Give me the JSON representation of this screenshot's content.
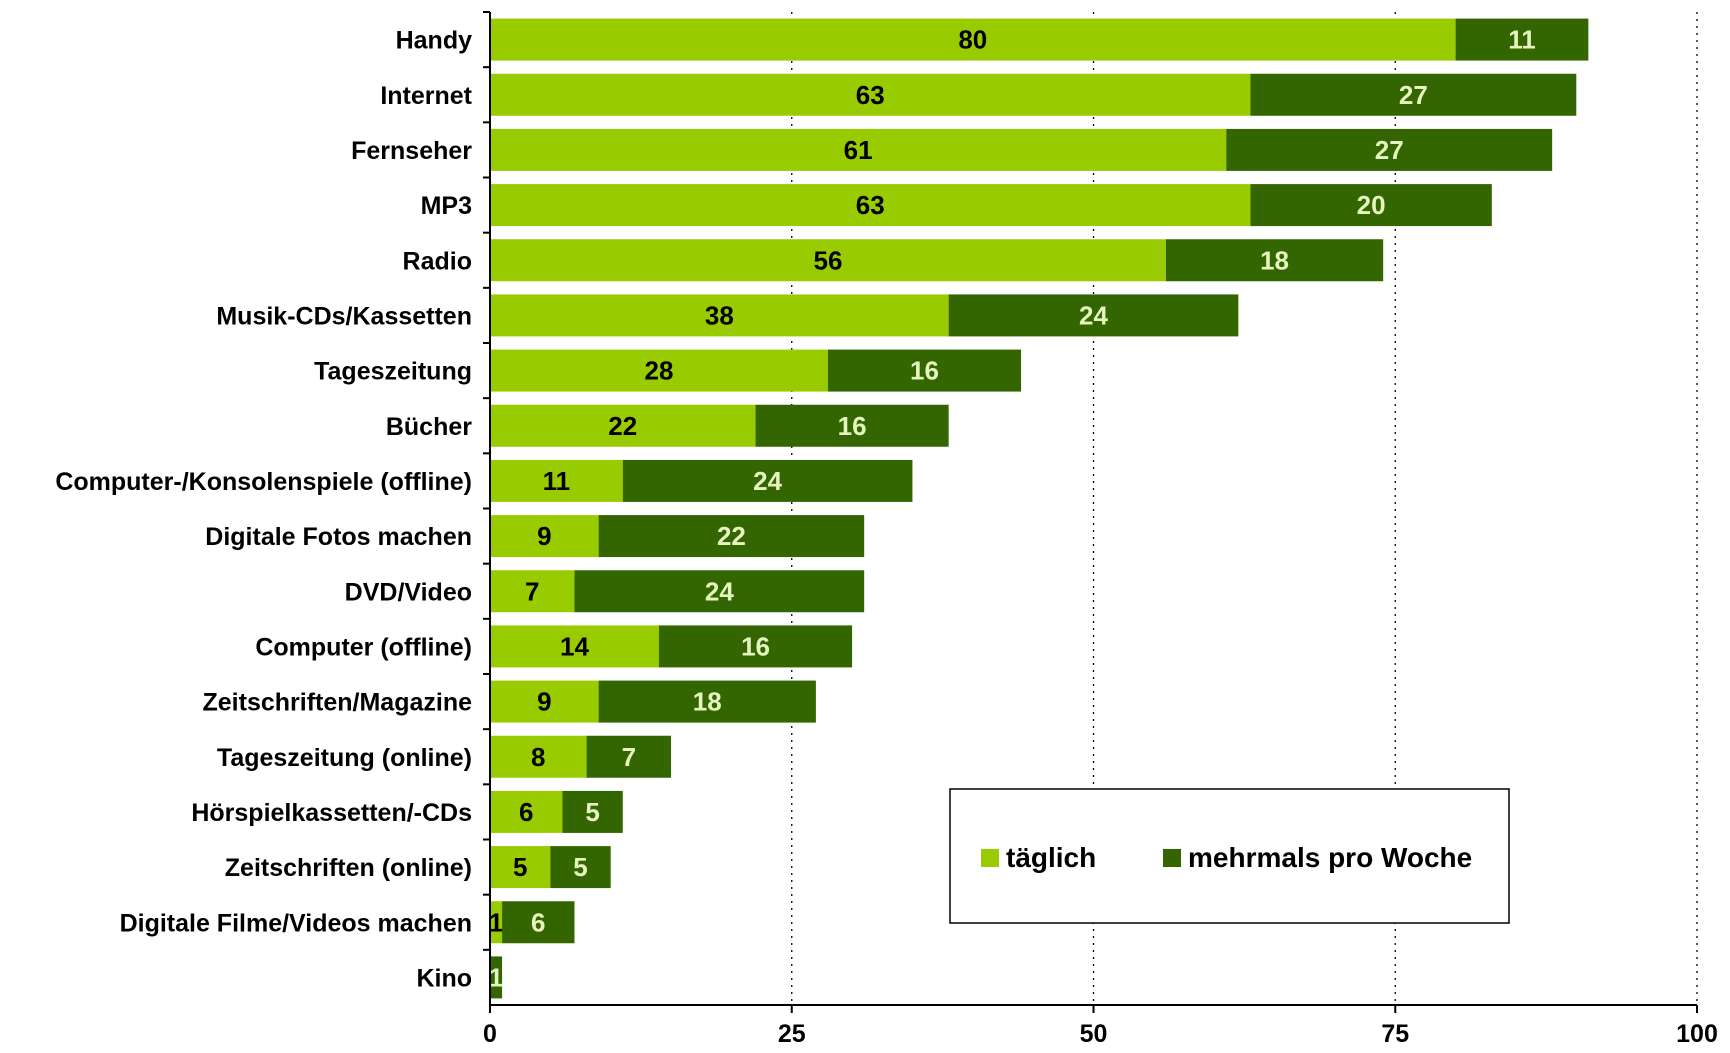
{
  "chart_data": {
    "type": "bar",
    "orientation": "horizontal",
    "stacked": true,
    "categories": [
      "Handy",
      "Internet",
      "Fernseher",
      "MP3",
      "Radio",
      "Musik-CDs/Kassetten",
      "Tageszeitung",
      "Bücher",
      "Computer-/Konsolenspiele (offline)",
      "Digitale Fotos machen",
      "DVD/Video",
      "Computer (offline)",
      "Zeitschriften/Magazine",
      "Tageszeitung (online)",
      "Hörspielkassetten/-CDs",
      "Zeitschriften (online)",
      "Digitale Filme/Videos machen",
      "Kino"
    ],
    "series": [
      {
        "name": "täglich",
        "color": "#99cc00",
        "values": [
          80,
          63,
          61,
          63,
          56,
          38,
          28,
          22,
          11,
          9,
          7,
          14,
          9,
          8,
          6,
          5,
          1,
          0
        ],
        "labels": [
          "80",
          "63",
          "61",
          "63",
          "56",
          "38",
          "28",
          "22",
          "11",
          "9",
          "7",
          "14",
          "9",
          "8",
          "6",
          "5",
          "1",
          ""
        ]
      },
      {
        "name": "mehrmals pro Woche",
        "color": "#336600",
        "values": [
          11,
          27,
          27,
          20,
          18,
          24,
          16,
          16,
          24,
          22,
          24,
          16,
          18,
          7,
          5,
          5,
          6,
          1
        ],
        "labels": [
          "11",
          "27",
          "27",
          "20",
          "18",
          "24",
          "16",
          "16",
          "24",
          "22",
          "24",
          "16",
          "18",
          "7",
          "5",
          "5",
          "6",
          "1"
        ]
      }
    ],
    "xlim": [
      0,
      100
    ],
    "xticks": [
      0,
      25,
      50,
      75,
      100
    ],
    "xtick_labels": [
      "0",
      "25",
      "50",
      "75",
      "100"
    ],
    "grid": "vertical dotted",
    "legend_position": "lower-right",
    "title": "",
    "xlabel": "",
    "ylabel": ""
  }
}
